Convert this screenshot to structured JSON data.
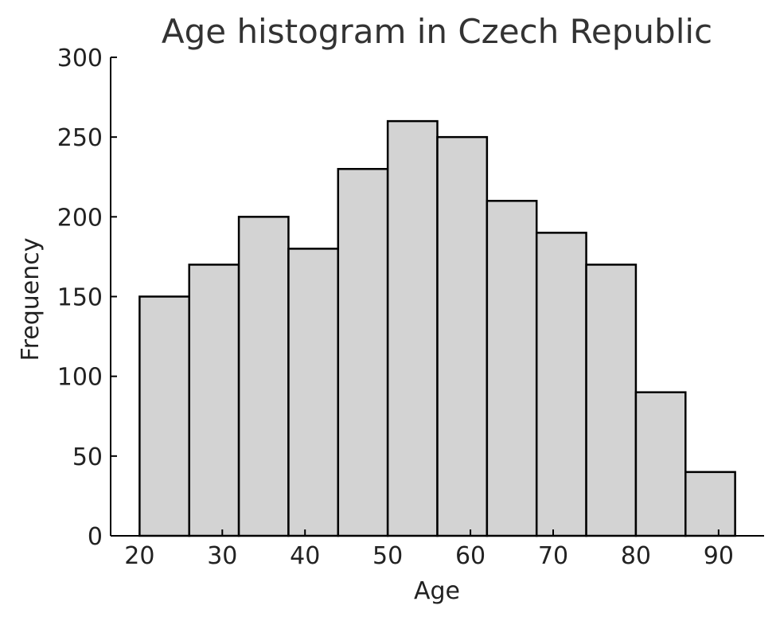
{
  "chart_data": {
    "type": "bar",
    "title": "Age histogram in Czech Republic",
    "xlabel": "Age",
    "ylabel": "Frequency",
    "bin_edges": [
      20,
      26,
      32,
      38,
      44,
      50,
      56,
      62,
      68,
      74,
      80,
      86,
      92
    ],
    "values": [
      150,
      170,
      200,
      180,
      230,
      260,
      250,
      210,
      190,
      170,
      90,
      40
    ],
    "xticks": [
      20,
      30,
      40,
      50,
      60,
      70,
      80,
      90
    ],
    "yticks": [
      0,
      50,
      100,
      150,
      200,
      250,
      300
    ],
    "xlim": [
      16.5,
      95.5
    ],
    "ylim": [
      0,
      300
    ],
    "bar_color": "#d3d3d3",
    "edge_color": "#000000",
    "grid": false,
    "legend": "none"
  }
}
